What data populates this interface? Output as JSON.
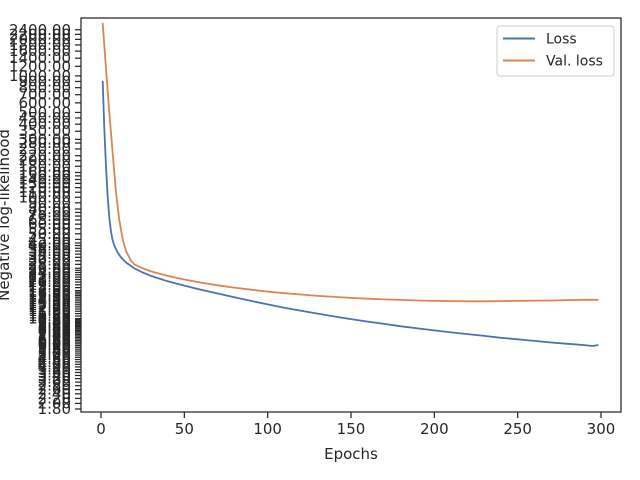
{
  "chart_data": {
    "type": "line",
    "title": "",
    "xlabel": "Epochs",
    "ylabel": "Negative log-likelihood",
    "xlim": [
      -12,
      312
    ],
    "ylim": [
      1.7,
      3000
    ],
    "y_scale": "log",
    "grid": false,
    "legend_position": "top-right",
    "x_ticks": [
      0,
      50,
      100,
      150,
      200,
      250,
      300
    ],
    "y_ticks": [
      1.8,
      2.0,
      2.2,
      2.4,
      2.6,
      2.8,
      3.0,
      3.2,
      3.4,
      3.6,
      3.8,
      4.0,
      4.2,
      4.4,
      4.6,
      4.8,
      5.0,
      5.2,
      5.4,
      5.6,
      5.8,
      6.0,
      6.2,
      6.4,
      6.6,
      6.8,
      7.0,
      7.2,
      7.4,
      7.6,
      7.8,
      8.0,
      8.2,
      8.4,
      8.6,
      8.8,
      9.0,
      9.2,
      9.4,
      9.6,
      9.8,
      10.0,
      10.5,
      11.0,
      11.5,
      12.0,
      12.5,
      13.0,
      13.5,
      14.0,
      14.5,
      15.0,
      15.5,
      16.0,
      16.5,
      17.0,
      18.0,
      19.0,
      20.0,
      21.0,
      22.0,
      23.0,
      24.0,
      25.0,
      26.0,
      28.0,
      30.0,
      32.0,
      34.0,
      36.0,
      38.0,
      40.0,
      42.0,
      45.0,
      50.0,
      55.0,
      60.0,
      65.0,
      70.0,
      75.0,
      80.0,
      90.0,
      100.0,
      110.0,
      120.0,
      130.0,
      140.0,
      150.0,
      160.0,
      180.0,
      200.0,
      220.0,
      250.0,
      280.0,
      300.0,
      350.0,
      400.0,
      450.0,
      500.0,
      600.0,
      700.0,
      800.0,
      900.0,
      1000.0,
      1200.0,
      1400.0,
      1600.0,
      1800.0,
      2000.0,
      2200.0,
      2400.0
    ],
    "series": [
      {
        "name": "Loss",
        "color": "#4c72b0",
        "x": [
          1,
          2,
          3,
          4,
          5,
          6,
          7,
          8,
          10,
          12,
          15,
          20,
          25,
          30,
          40,
          50,
          60,
          70,
          80,
          90,
          100,
          110,
          120,
          130,
          140,
          150,
          160,
          170,
          180,
          190,
          200,
          210,
          220,
          230,
          240,
          250,
          260,
          270,
          280,
          290,
          295,
          298
        ],
        "values": [
          900,
          370,
          180,
          100,
          68,
          52,
          44,
          40,
          35,
          32,
          29,
          26,
          24,
          22.5,
          20.3,
          18.7,
          17.3,
          16.1,
          15.0,
          14.0,
          13.1,
          12.3,
          11.6,
          11.0,
          10.4,
          9.9,
          9.45,
          9.05,
          8.65,
          8.3,
          8.0,
          7.7,
          7.45,
          7.2,
          6.95,
          6.75,
          6.55,
          6.35,
          6.2,
          6.05,
          5.95,
          6.05
        ]
      },
      {
        "name": "Val. loss",
        "color": "#dd8452",
        "x": [
          1,
          2,
          3,
          5,
          7,
          9,
          11,
          13,
          15,
          18,
          20,
          25,
          30,
          40,
          50,
          60,
          70,
          80,
          90,
          100,
          110,
          120,
          130,
          140,
          150,
          160,
          170,
          180,
          190,
          200,
          210,
          220,
          230,
          240,
          250,
          260,
          270,
          280,
          290,
          298
        ],
        "values": [
          2700,
          1800,
          1150,
          500,
          230,
          110,
          65,
          45,
          36,
          30,
          28,
          26,
          24.5,
          22.5,
          21,
          19.8,
          18.8,
          18.0,
          17.3,
          16.7,
          16.2,
          15.8,
          15.4,
          15.1,
          14.8,
          14.6,
          14.4,
          14.25,
          14.1,
          14.0,
          13.95,
          13.9,
          13.9,
          13.95,
          14.0,
          14.05,
          14.1,
          14.2,
          14.3,
          14.3
        ]
      }
    ]
  }
}
